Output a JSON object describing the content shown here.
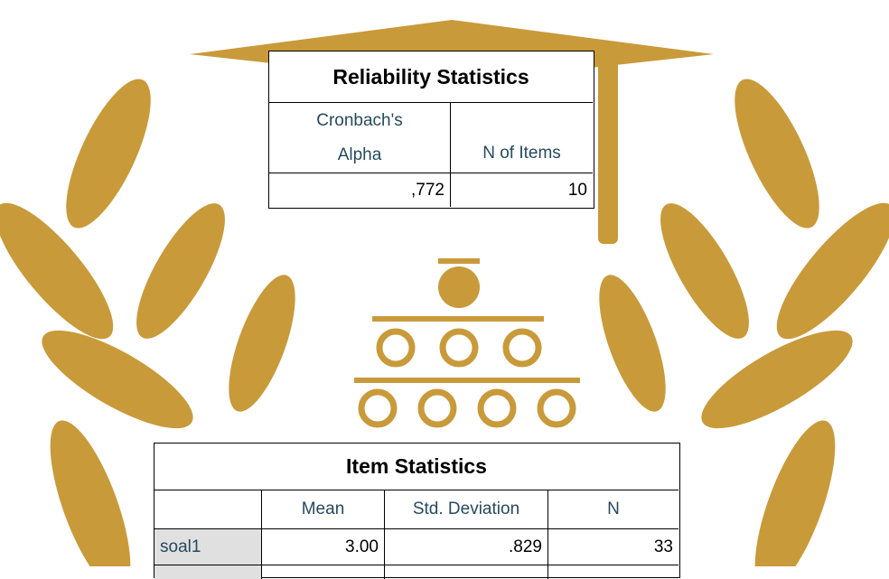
{
  "reliability_table": {
    "title": "Reliability Statistics",
    "headers": [
      "Cronbach's Alpha",
      "N of Items"
    ],
    "row": [
      ",772",
      "10"
    ]
  },
  "item_table": {
    "title": "Item Statistics",
    "headers": [
      "Mean",
      "Std. Deviation",
      "N"
    ],
    "rows": [
      [
        "soal1",
        "3.00",
        ".829",
        "33"
      ]
    ]
  }
}
